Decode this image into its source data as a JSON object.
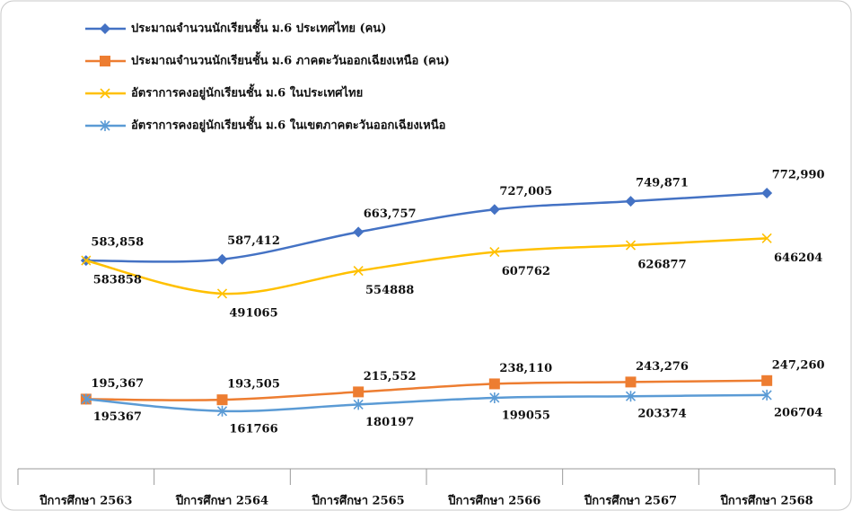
{
  "chart_data": {
    "type": "line",
    "categories": [
      "ปีการศึกษา 2563",
      "ปีการศึกษา 2564",
      "ปีการศึกษา 2565",
      "ปีการศึกษา 2566",
      "ปีการศึกษา 2567",
      "ปีการศึกษา 2568"
    ],
    "series": [
      {
        "name": "ประมาณจำนวนนักเรียนชั้น ม.6 ประเทศไทย (คน)",
        "color": "#4472c4",
        "marker": "diamond",
        "values": [
          583858,
          587412,
          663757,
          727005,
          749871,
          772990
        ],
        "value_labels": [
          "583,858",
          "587,412",
          "663,757",
          "727,005",
          "749,871",
          "772,990"
        ]
      },
      {
        "name": "ประมาณจำนวนนักเรียนชั้น ม.6 ภาคตะวันออกเฉียงเหนือ (คน)",
        "color": "#ed7d31",
        "marker": "square",
        "values": [
          195367,
          193505,
          215552,
          238110,
          243276,
          247260
        ],
        "value_labels": [
          "195,367",
          "193,505",
          "215,552",
          "238,110",
          "243,276",
          "247,260"
        ]
      },
      {
        "name": "อัตราการคงอยู่นักเรียนชั้น ม.6 ในประเทศไทย",
        "color": "#ffc000",
        "marker": "x",
        "values": [
          583858,
          491065,
          554888,
          607762,
          626877,
          646204
        ]
      },
      {
        "name": "อัตราการคงอยู่นักเรียนชั้น ม.6 ในเขตภาคตะวันออกเฉียงเหนือ",
        "color": "#5b9bd5",
        "marker": "star",
        "values": [
          195367,
          161766,
          180197,
          199055,
          203374,
          206704
        ]
      }
    ],
    "legend": "top-left"
  }
}
